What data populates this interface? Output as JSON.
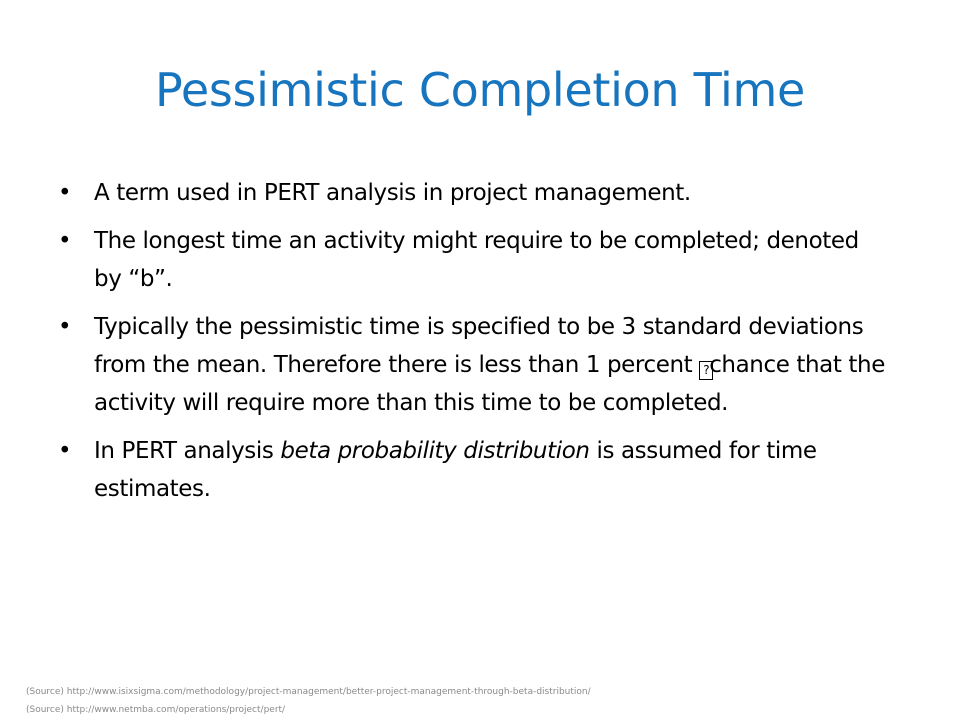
{
  "slide": {
    "title": "Pessimistic Completion Time",
    "bullets": [
      {
        "text": "A term used in PERT analysis in project management."
      },
      {
        "text": "The longest time an activity might require to be completed; denoted by “b”."
      },
      {
        "part1": "Typically the pessimistic time is specified to be 3 standard deviations from the mean. Therefore there is less than 1 percent ",
        "box": "?",
        "part2": "chance that the activity will require more than this time to be completed."
      },
      {
        "before": "In PERT analysis ",
        "italic": "beta probability  distribution",
        "after": " is assumed for time estimates."
      }
    ],
    "sources": [
      "(Source) http://www.isixsigma.com/methodology/project-management/better-project-management-through-beta-distribution/",
      "(Source) http://www.netmba.com/operations/project/pert/"
    ],
    "colors": {
      "title": "#1675be",
      "body": "#000000",
      "source": "#8a8a8a"
    }
  }
}
